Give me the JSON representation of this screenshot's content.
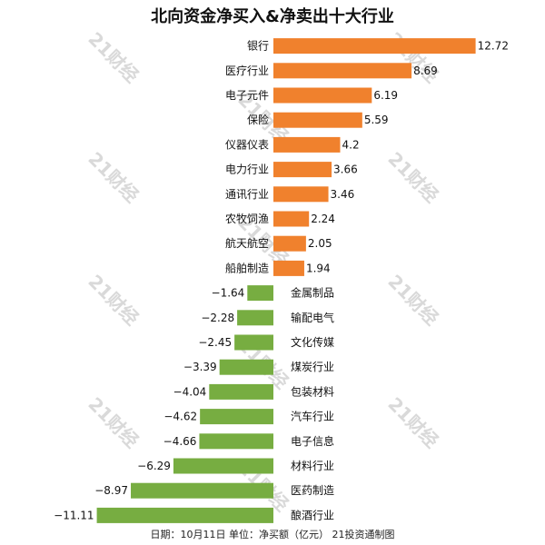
{
  "chart_data": {
    "type": "bar",
    "orientation": "horizontal",
    "title": "北向资金净买入&净卖出十大行业",
    "footer": "日期：10月11日 单位：净买额（亿元） 21投资通制图",
    "watermark": "21财经",
    "colors": {
      "positive": "#f0812d",
      "negative": "#77ad41"
    },
    "categories": [
      "银行",
      "医疗行业",
      "电子元件",
      "保险",
      "仪器仪表",
      "电力行业",
      "通讯行业",
      "农牧饲渔",
      "航天航空",
      "船舶制造",
      "金属制品",
      "输配电气",
      "文化传媒",
      "煤炭行业",
      "包装材料",
      "汽车行业",
      "电子信息",
      "材料行业",
      "医药制造",
      "酿酒行业"
    ],
    "values": [
      12.72,
      8.69,
      6.19,
      5.59,
      4.2,
      3.66,
      3.46,
      2.24,
      2.05,
      1.94,
      -1.64,
      -2.28,
      -2.45,
      -3.39,
      -4.04,
      -4.62,
      -4.66,
      -6.29,
      -8.97,
      -11.11
    ],
    "value_labels": [
      "12.72",
      "8.69",
      "6.19",
      "5.59",
      "4.2",
      "3.66",
      "3.46",
      "2.24",
      "2.05",
      "1.94",
      "−1.64",
      "−2.28",
      "−2.45",
      "−3.39",
      "−4.04",
      "−4.62",
      "−4.66",
      "−6.29",
      "−8.97",
      "−11.11"
    ]
  }
}
